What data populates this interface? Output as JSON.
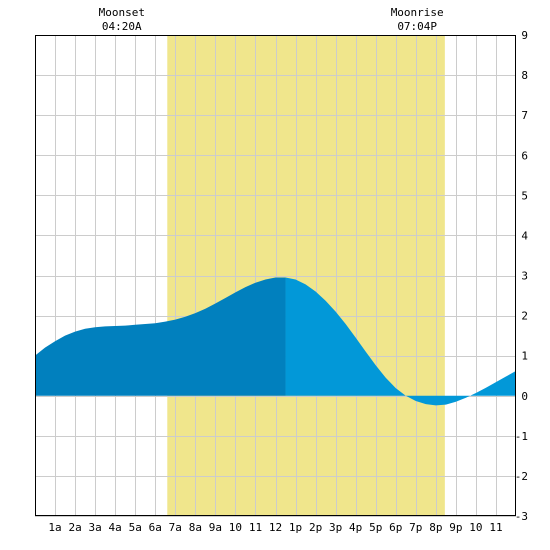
{
  "moon_events": [
    {
      "label": "Moonset",
      "time": "04:20A",
      "x": 4.33
    },
    {
      "label": "Moonrise",
      "time": "07:04P",
      "x": 19.07
    }
  ],
  "chart_data": {
    "type": "area",
    "title": "",
    "xlabel": "",
    "ylabel": "",
    "xlim": [
      0,
      24
    ],
    "ylim": [
      -3,
      9
    ],
    "grid": true,
    "x_ticks": [
      {
        "x": 1,
        "label": "1a"
      },
      {
        "x": 2,
        "label": "2a"
      },
      {
        "x": 3,
        "label": "3a"
      },
      {
        "x": 4,
        "label": "4a"
      },
      {
        "x": 5,
        "label": "5a"
      },
      {
        "x": 6,
        "label": "6a"
      },
      {
        "x": 7,
        "label": "7a"
      },
      {
        "x": 8,
        "label": "8a"
      },
      {
        "x": 9,
        "label": "9a"
      },
      {
        "x": 10,
        "label": "10"
      },
      {
        "x": 11,
        "label": "11"
      },
      {
        "x": 12,
        "label": "12"
      },
      {
        "x": 13,
        "label": "1p"
      },
      {
        "x": 14,
        "label": "2p"
      },
      {
        "x": 15,
        "label": "3p"
      },
      {
        "x": 16,
        "label": "4p"
      },
      {
        "x": 17,
        "label": "5p"
      },
      {
        "x": 18,
        "label": "6p"
      },
      {
        "x": 19,
        "label": "7p"
      },
      {
        "x": 20,
        "label": "8p"
      },
      {
        "x": 21,
        "label": "9p"
      },
      {
        "x": 22,
        "label": "10"
      },
      {
        "x": 23,
        "label": "11"
      }
    ],
    "y_ticks": [
      -3,
      -2,
      -1,
      0,
      1,
      2,
      3,
      4,
      5,
      6,
      7,
      8,
      9
    ],
    "daylight": {
      "start": 6.6,
      "end": 20.45,
      "color": "#f0e68c"
    },
    "colors": {
      "rising": "#0180be",
      "falling": "#0298d8",
      "grid": "#cccccc",
      "frame": "#000000"
    },
    "high_tide": {
      "x": 12.5,
      "y": 2.95
    },
    "series": [
      {
        "x": [
          0,
          0.5,
          1,
          1.5,
          2,
          2.5,
          3,
          3.5,
          4,
          4.5,
          5,
          5.5,
          6,
          6.5,
          7,
          7.5,
          8,
          8.5,
          9,
          9.5,
          10,
          10.5,
          11,
          11.5,
          12,
          12.5,
          13,
          13.5,
          14,
          14.5,
          15,
          15.5,
          16,
          16.5,
          17,
          17.5,
          18,
          18.5,
          19,
          19.5,
          20,
          20.5,
          21,
          21.5,
          22,
          22.5,
          23,
          23.5,
          24
        ],
        "y": [
          1.0,
          1.2,
          1.36,
          1.5,
          1.6,
          1.67,
          1.71,
          1.73,
          1.74,
          1.75,
          1.77,
          1.79,
          1.81,
          1.85,
          1.9,
          1.97,
          2.06,
          2.17,
          2.3,
          2.44,
          2.58,
          2.71,
          2.82,
          2.9,
          2.95,
          2.95,
          2.9,
          2.78,
          2.6,
          2.37,
          2.1,
          1.79,
          1.45,
          1.1,
          0.76,
          0.45,
          0.19,
          0.0,
          -0.13,
          -0.21,
          -0.24,
          -0.22,
          -0.15,
          -0.05,
          0.07,
          0.2,
          0.34,
          0.48,
          0.62
        ]
      }
    ]
  }
}
